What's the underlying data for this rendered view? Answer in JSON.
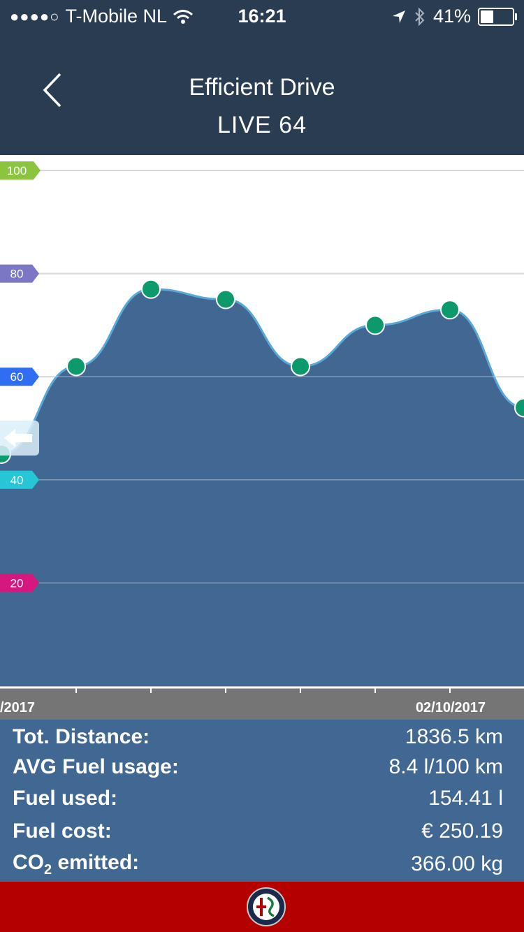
{
  "status_bar": {
    "signal_dots": "●●●●○",
    "carrier": "T-Mobile NL",
    "time": "16:21",
    "battery_text": "41%",
    "battery_level": 0.41
  },
  "nav": {
    "title": "Efficient Drive",
    "subtitle": "LIVE 64"
  },
  "chart_data": {
    "type": "area",
    "ylim": [
      0,
      100
    ],
    "y_ticks": [
      {
        "label": "100",
        "value": 100,
        "color": "#8bc53f"
      },
      {
        "label": "80",
        "value": 80,
        "color": "#7b77c4"
      },
      {
        "label": "60",
        "value": 60,
        "color": "#2f6ef2"
      },
      {
        "label": "40",
        "value": 40,
        "color": "#27c6d6"
      },
      {
        "label": "20",
        "value": 20,
        "color": "#d6177f"
      }
    ],
    "x_labels": [
      "/2017",
      "02/10/2017"
    ],
    "values": [
      45,
      62,
      77,
      75,
      62,
      70,
      73,
      54
    ],
    "series_color": "#416893",
    "line_color": "#5aa8d8",
    "point_color": "#0c9a6c"
  },
  "stats": [
    {
      "label": "Tot. Distance:",
      "value": "1836.5 km"
    },
    {
      "label": "AVG Fuel usage:",
      "value": "8.4 l/100 km"
    },
    {
      "label": "Fuel used:",
      "value": "154.41 l"
    },
    {
      "label": "Fuel cost:",
      "value": "€ 250.19"
    },
    {
      "label_main": "CO",
      "label_sub": "2",
      "label_rest": " emitted:",
      "value": "366.00 kg"
    }
  ],
  "footer": {
    "brand_color": "#b50000",
    "logo_icon": "alfa-romeo-logo"
  }
}
